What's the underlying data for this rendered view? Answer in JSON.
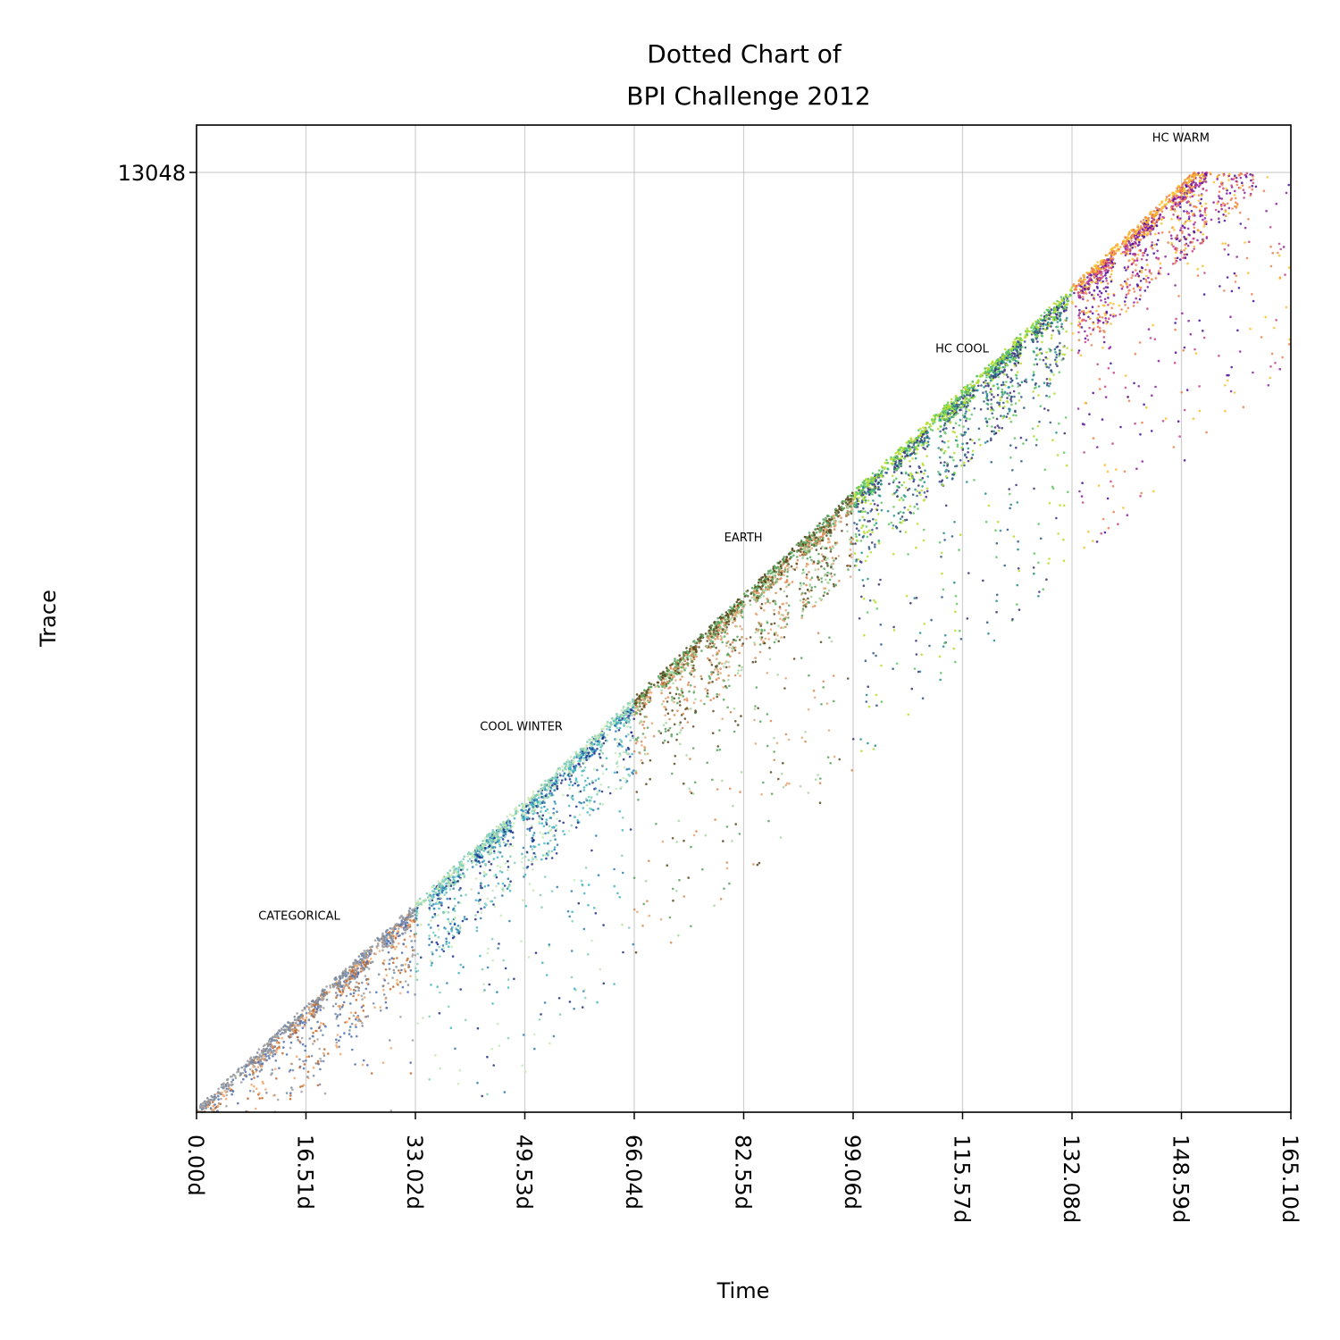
{
  "chart_data": {
    "type": "scatter",
    "title": [
      "Dotted Chart of",
      "BPI Challenge 2012"
    ],
    "xlabel": "Time",
    "ylabel": "Trace",
    "x_unit": "d",
    "xlim": [
      0,
      165.1
    ],
    "ylim": [
      0,
      13048
    ],
    "x_ticks": [
      "0.00d",
      "16.51d",
      "33.02d",
      "49.53d",
      "66.04d",
      "82.55d",
      "99.06d",
      "115.57d",
      "132.08d",
      "148.59d",
      "165.10d"
    ],
    "y_ticks": [
      "13048"
    ],
    "grid": true,
    "annotations": [
      {
        "text": "CATEGORICAL",
        "x": 15.5,
        "y": 2675
      },
      {
        "text": "COOL WINTER",
        "x": 49.0,
        "y": 5300
      },
      {
        "text": "EARTH",
        "x": 82.5,
        "y": 7925
      },
      {
        "text": "HC COOL",
        "x": 115.5,
        "y": 10550
      },
      {
        "text": "HC WARM",
        "x": 148.5,
        "y": 13475
      }
    ],
    "series": [
      {
        "x_range": [
          0,
          33.02
        ],
        "palette": [
          "#4e6fb5",
          "#f3a66a",
          "#c26a2a",
          "#7a8aa0",
          "#a0a0a0"
        ]
      },
      {
        "x_range": [
          33.02,
          66.04
        ],
        "palette": [
          "#1f2f8a",
          "#2c7fb8",
          "#41b6c4",
          "#7fcdbb",
          "#c7e9b4"
        ]
      },
      {
        "x_range": [
          66.04,
          99.06
        ],
        "palette": [
          "#d98a54",
          "#e6a676",
          "#a8d6a0",
          "#5a4a1f",
          "#58a55c"
        ]
      },
      {
        "x_range": [
          99.06,
          132.08
        ],
        "palette": [
          "#3b2f7a",
          "#2e5a8a",
          "#21918c",
          "#5ec962",
          "#b5de2b"
        ]
      },
      {
        "x_range": [
          132.08,
          165.1
        ],
        "palette": [
          "#4b0c9e",
          "#8f1fa3",
          "#c8438a",
          "#ef7f4a",
          "#fbbf2a"
        ]
      }
    ]
  }
}
